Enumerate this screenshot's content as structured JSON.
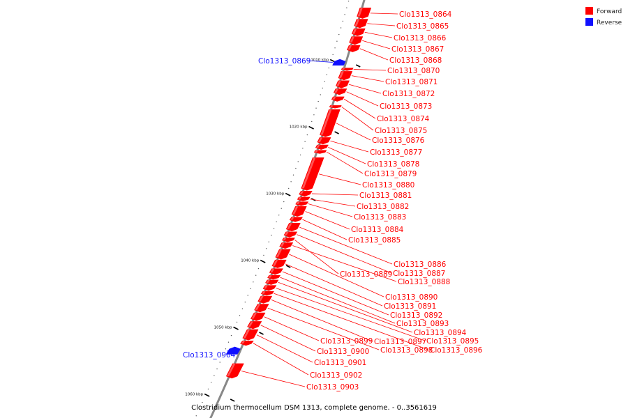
{
  "chart_data": {
    "type": "genome-map",
    "caption": "Clostridium thermocellum DSM 1313, complete genome. - 0..3561619",
    "colors": {
      "forward": "#ff0000",
      "reverse": "#1010ff",
      "backbone": "#888888"
    },
    "legend": {
      "placement": "top-right",
      "items": [
        {
          "label": "Forward",
          "color": "#ff0000"
        },
        {
          "label": "Reverse",
          "color": "#1010ff"
        }
      ]
    },
    "ticks": [
      {
        "kbp": 1010,
        "label": "1010 kbp"
      },
      {
        "kbp": 1020,
        "label": "1020 kbp"
      },
      {
        "kbp": 1030,
        "label": "1030 kbp"
      },
      {
        "kbp": 1040,
        "label": "1040 kbp"
      },
      {
        "kbp": 1050,
        "label": "1050 kbp"
      },
      {
        "kbp": 1060,
        "label": "1060 kbp"
      }
    ],
    "genes": [
      {
        "name": "Clo1313_0864",
        "strand": "forward",
        "start_kbp": 1002.0,
        "end_kbp": 1003.6
      },
      {
        "name": "Clo1313_0865",
        "strand": "forward",
        "start_kbp": 1003.7,
        "end_kbp": 1005.0
      },
      {
        "name": "Clo1313_0866",
        "strand": "forward",
        "start_kbp": 1005.1,
        "end_kbp": 1006.2
      },
      {
        "name": "Clo1313_0867",
        "strand": "forward",
        "start_kbp": 1006.3,
        "end_kbp": 1007.5
      },
      {
        "name": "Clo1313_0868",
        "strand": "forward",
        "start_kbp": 1007.6,
        "end_kbp": 1008.6
      },
      {
        "name": "Clo1313_0869",
        "strand": "reverse",
        "start_kbp": 1009.7,
        "end_kbp": 1010.6
      },
      {
        "name": "Clo1313_0870",
        "strand": "forward",
        "start_kbp": 1011.0,
        "end_kbp": 1011.4
      },
      {
        "name": "Clo1313_0871",
        "strand": "forward",
        "start_kbp": 1011.5,
        "end_kbp": 1012.8
      },
      {
        "name": "Clo1313_0872",
        "strand": "forward",
        "start_kbp": 1012.9,
        "end_kbp": 1014.0
      },
      {
        "name": "Clo1313_0873",
        "strand": "forward",
        "start_kbp": 1014.1,
        "end_kbp": 1015.0
      },
      {
        "name": "Clo1313_0874",
        "strand": "forward",
        "start_kbp": 1015.3,
        "end_kbp": 1016.0
      },
      {
        "name": "Clo1313_0875",
        "strand": "forward",
        "start_kbp": 1016.6,
        "end_kbp": 1017.0
      },
      {
        "name": "Clo1313_0876",
        "strand": "forward",
        "start_kbp": 1017.2,
        "end_kbp": 1021.3
      },
      {
        "name": "Clo1313_0877",
        "strand": "forward",
        "start_kbp": 1021.4,
        "end_kbp": 1022.4
      },
      {
        "name": "Clo1313_0878",
        "strand": "forward",
        "start_kbp": 1022.5,
        "end_kbp": 1023.2
      },
      {
        "name": "Clo1313_0879",
        "strand": "forward",
        "start_kbp": 1023.3,
        "end_kbp": 1023.8
      },
      {
        "name": "Clo1313_0880",
        "strand": "forward",
        "start_kbp": 1024.4,
        "end_kbp": 1029.3
      },
      {
        "name": "Clo1313_0881",
        "strand": "forward",
        "start_kbp": 1029.4,
        "end_kbp": 1030.2
      },
      {
        "name": "Clo1313_0882",
        "strand": "forward",
        "start_kbp": 1030.3,
        "end_kbp": 1030.9
      },
      {
        "name": "Clo1313_0883",
        "strand": "forward",
        "start_kbp": 1031.0,
        "end_kbp": 1031.6
      },
      {
        "name": "Clo1313_0884",
        "strand": "forward",
        "start_kbp": 1031.7,
        "end_kbp": 1033.2
      },
      {
        "name": "Clo1313_0885",
        "strand": "forward",
        "start_kbp": 1033.3,
        "end_kbp": 1034.0
      },
      {
        "name": "Clo1313_0886",
        "strand": "forward",
        "start_kbp": 1034.2,
        "end_kbp": 1035.4
      },
      {
        "name": "Clo1313_0887",
        "strand": "forward",
        "start_kbp": 1035.5,
        "end_kbp": 1036.3
      },
      {
        "name": "Clo1313_0889",
        "strand": "forward",
        "start_kbp": 1036.4,
        "end_kbp": 1037.0
      },
      {
        "name": "Clo1313_0888",
        "strand": "forward",
        "start_kbp": 1037.1,
        "end_kbp": 1038.0
      },
      {
        "name": "Clo1313_0890",
        "strand": "forward",
        "start_kbp": 1038.1,
        "end_kbp": 1039.6
      },
      {
        "name": "Clo1313_0891",
        "strand": "forward",
        "start_kbp": 1039.7,
        "end_kbp": 1040.9
      },
      {
        "name": "Clo1313_0892",
        "strand": "forward",
        "start_kbp": 1041.0,
        "end_kbp": 1041.9
      },
      {
        "name": "Clo1313_0893",
        "strand": "forward",
        "start_kbp": 1042.0,
        "end_kbp": 1042.6
      },
      {
        "name": "Clo1313_0894",
        "strand": "forward",
        "start_kbp": 1042.7,
        "end_kbp": 1043.4
      },
      {
        "name": "Clo1313_0895",
        "strand": "forward",
        "start_kbp": 1043.5,
        "end_kbp": 1044.3
      },
      {
        "name": "Clo1313_0896",
        "strand": "forward",
        "start_kbp": 1044.4,
        "end_kbp": 1045.0
      },
      {
        "name": "Clo1313_0897",
        "strand": "forward",
        "start_kbp": 1045.1,
        "end_kbp": 1046.2
      },
      {
        "name": "Clo1313_0898",
        "strand": "forward",
        "start_kbp": 1046.3,
        "end_kbp": 1047.5
      },
      {
        "name": "Clo1313_0899",
        "strand": "forward",
        "start_kbp": 1047.6,
        "end_kbp": 1048.8
      },
      {
        "name": "Clo1313_0900",
        "strand": "forward",
        "start_kbp": 1048.9,
        "end_kbp": 1050.0
      },
      {
        "name": "Clo1313_0901",
        "strand": "forward",
        "start_kbp": 1050.1,
        "end_kbp": 1051.7
      },
      {
        "name": "Clo1313_0902",
        "strand": "forward",
        "start_kbp": 1051.8,
        "end_kbp": 1052.5
      },
      {
        "name": "Clo1313_0904",
        "strand": "reverse",
        "start_kbp": 1052.7,
        "end_kbp": 1053.8
      },
      {
        "name": "Clo1313_0903",
        "strand": "forward",
        "start_kbp": 1055.2,
        "end_kbp": 1057.4
      }
    ]
  }
}
